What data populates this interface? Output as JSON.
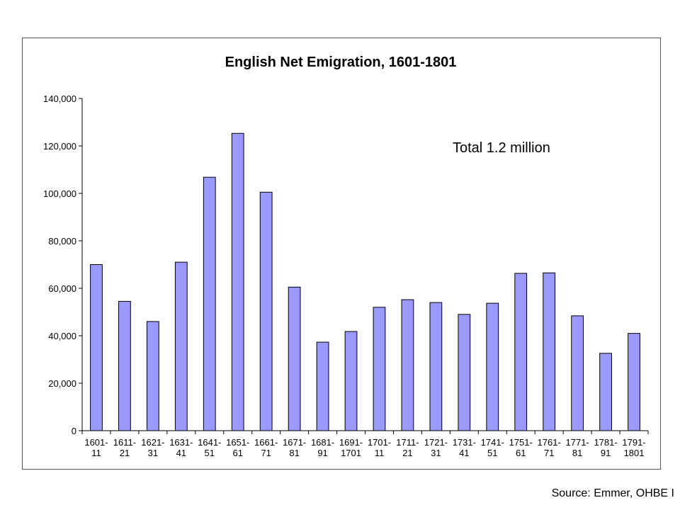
{
  "chart_data": {
    "type": "bar",
    "title": "English Net Emigration, 1601-1801",
    "xlabel": "",
    "ylabel": "",
    "categories": [
      [
        "1601-",
        "11"
      ],
      [
        "1611-",
        "21"
      ],
      [
        "1621-",
        "31"
      ],
      [
        "1631-",
        "41"
      ],
      [
        "1641-",
        "51"
      ],
      [
        "1651-",
        "61"
      ],
      [
        "1661-",
        "71"
      ],
      [
        "1671-",
        "81"
      ],
      [
        "1681-",
        "91"
      ],
      [
        "1691-",
        "1701"
      ],
      [
        "1701-",
        "11"
      ],
      [
        "1711-",
        "21"
      ],
      [
        "1721-",
        "31"
      ],
      [
        "1731-",
        "41"
      ],
      [
        "1741-",
        "51"
      ],
      [
        "1751-",
        "61"
      ],
      [
        "1761-",
        "71"
      ],
      [
        "1771-",
        "81"
      ],
      [
        "1781-",
        "91"
      ],
      [
        "1791-",
        "1801"
      ]
    ],
    "values": [
      70000,
      54500,
      46000,
      71000,
      106800,
      125300,
      100500,
      60500,
      37300,
      41800,
      52000,
      55200,
      54000,
      49000,
      53700,
      66300,
      66500,
      48400,
      32600,
      41000
    ],
    "ylim": [
      0,
      140000
    ],
    "yticks": [
      0,
      20000,
      40000,
      60000,
      80000,
      100000,
      120000,
      140000
    ],
    "ytick_labels": [
      "0",
      "20,000",
      "40,000",
      "60,000",
      "80,000",
      "100,000",
      "120,000",
      "140,000"
    ],
    "bar_color": "#9999ff",
    "bar_edge_color": "#000000",
    "grid": false,
    "legend": "none",
    "annotation": "Total 1.2 million"
  },
  "source_note": "Source: Emmer, OHBE I"
}
